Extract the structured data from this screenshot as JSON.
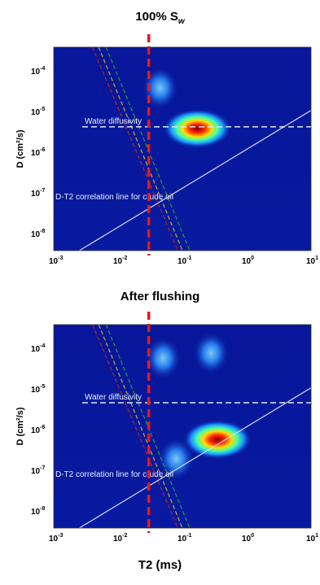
{
  "chart_data": [
    {
      "type": "heatmap",
      "title": "100% S",
      "title_sub": "w",
      "xlabel": "",
      "ylabel": "D (cm²/s)",
      "x_scale": "log",
      "y_scale": "log",
      "xlim": [
        0.001,
        10
      ],
      "ylim": [
        1e-08,
        0.001
      ],
      "x_tick_labels": [
        "-3",
        "-2",
        "-1",
        "0",
        "1"
      ],
      "y_tick_labels": [
        "-4",
        "-5",
        "-6",
        "-7",
        "-8"
      ],
      "annotations": {
        "water_diffusivity": "Water diffusivity",
        "oil_line": "D-T2 correlation line for crude oil"
      },
      "water_diffusivity_D": 1.1e-05,
      "cutoff_T2": 0.03,
      "crude_oil_line": [
        [
          0.0025,
          1e-08
        ],
        [
          10,
          2.8e-05
        ]
      ],
      "dashed_lines": [
        {
          "color": "#c02020",
          "points": [
            [
              0.004,
              0.001
            ],
            [
              0.085,
              1e-08
            ]
          ]
        },
        {
          "color": "#c8b020",
          "points": [
            [
              0.005,
              0.001
            ],
            [
              0.1,
              1e-08
            ]
          ]
        },
        {
          "color": "#28a028",
          "points": [
            [
              0.0065,
              0.001
            ],
            [
              0.13,
              1e-08
            ]
          ]
        }
      ],
      "peaks": [
        {
          "T2": 0.17,
          "D": 1e-05,
          "intensity": 1.0
        },
        {
          "T2": 0.045,
          "D": 0.0001,
          "intensity": 0.35
        }
      ]
    },
    {
      "type": "heatmap",
      "title": "After flushing",
      "xlabel": "T2 (ms)",
      "ylabel": "D (cm²/s)",
      "x_scale": "log",
      "y_scale": "log",
      "xlim": [
        0.001,
        10
      ],
      "ylim": [
        1e-08,
        0.001
      ],
      "x_tick_labels": [
        "-3",
        "-2",
        "-1",
        "0",
        "1"
      ],
      "y_tick_labels": [
        "-4",
        "-5",
        "-6",
        "-7",
        "-8"
      ],
      "annotations": {
        "water_diffusivity": "Water diffusivity",
        "oil_line": "D-T2 correlation line for crude oil"
      },
      "water_diffusivity_D": 1.2e-05,
      "cutoff_T2": 0.03,
      "crude_oil_line": [
        [
          0.0025,
          1e-08
        ],
        [
          10,
          2.8e-05
        ]
      ],
      "dashed_lines": [
        {
          "color": "#c02020",
          "points": [
            [
              0.004,
              0.001
            ],
            [
              0.085,
              1e-08
            ]
          ]
        },
        {
          "color": "#c8b020",
          "points": [
            [
              0.005,
              0.001
            ],
            [
              0.1,
              1e-08
            ]
          ]
        },
        {
          "color": "#28a028",
          "points": [
            [
              0.0065,
              0.001
            ],
            [
              0.13,
              1e-08
            ]
          ]
        }
      ],
      "peaks": [
        {
          "T2": 0.35,
          "D": 1.5e-06,
          "intensity": 1.0
        },
        {
          "T2": 0.05,
          "D": 0.00015,
          "intensity": 0.3
        },
        {
          "T2": 0.28,
          "D": 0.0002,
          "intensity": 0.35
        },
        {
          "T2": 0.08,
          "D": 5e-07,
          "intensity": 0.25
        }
      ]
    }
  ]
}
